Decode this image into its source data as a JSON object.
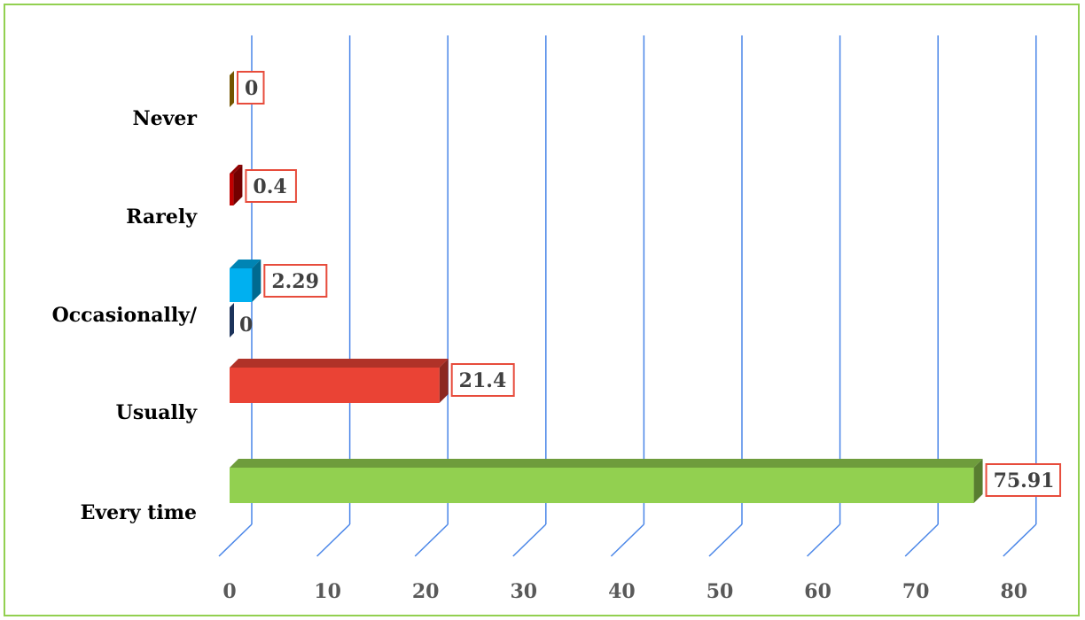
{
  "chart_data": {
    "type": "bar",
    "orientation": "horizontal",
    "style": "3d-clustered",
    "categories": [
      "Every time",
      "Usually",
      "Occasionally/",
      "Rarely",
      "Never"
    ],
    "series": [
      {
        "values": [
          75.91,
          21.4,
          2.29,
          0.4,
          0
        ],
        "colors": [
          "#92d050",
          "#ea4335",
          "#00b0f0",
          "#c00000",
          "#bf8f00"
        ]
      },
      {
        "values": [
          null,
          null,
          0,
          null,
          null
        ],
        "colors": [
          "#2f5597",
          "#2f5597",
          "#2f5597",
          "#2f5597",
          "#2f5597"
        ]
      }
    ],
    "data_labels": [
      "75.91",
      "21.4",
      "2.29",
      "0.4",
      "0"
    ],
    "secondary_data_labels": [
      "",
      "",
      "0",
      "",
      ""
    ],
    "xlim": [
      0,
      80
    ],
    "x_ticks": [
      0,
      10,
      20,
      30,
      40,
      50,
      60,
      70,
      80
    ],
    "grid": true,
    "grid_color": "#4a86e8",
    "label_border_color": "#e74c3c",
    "frame_color": "#92d050",
    "title": "",
    "xlabel": "",
    "ylabel": ""
  }
}
